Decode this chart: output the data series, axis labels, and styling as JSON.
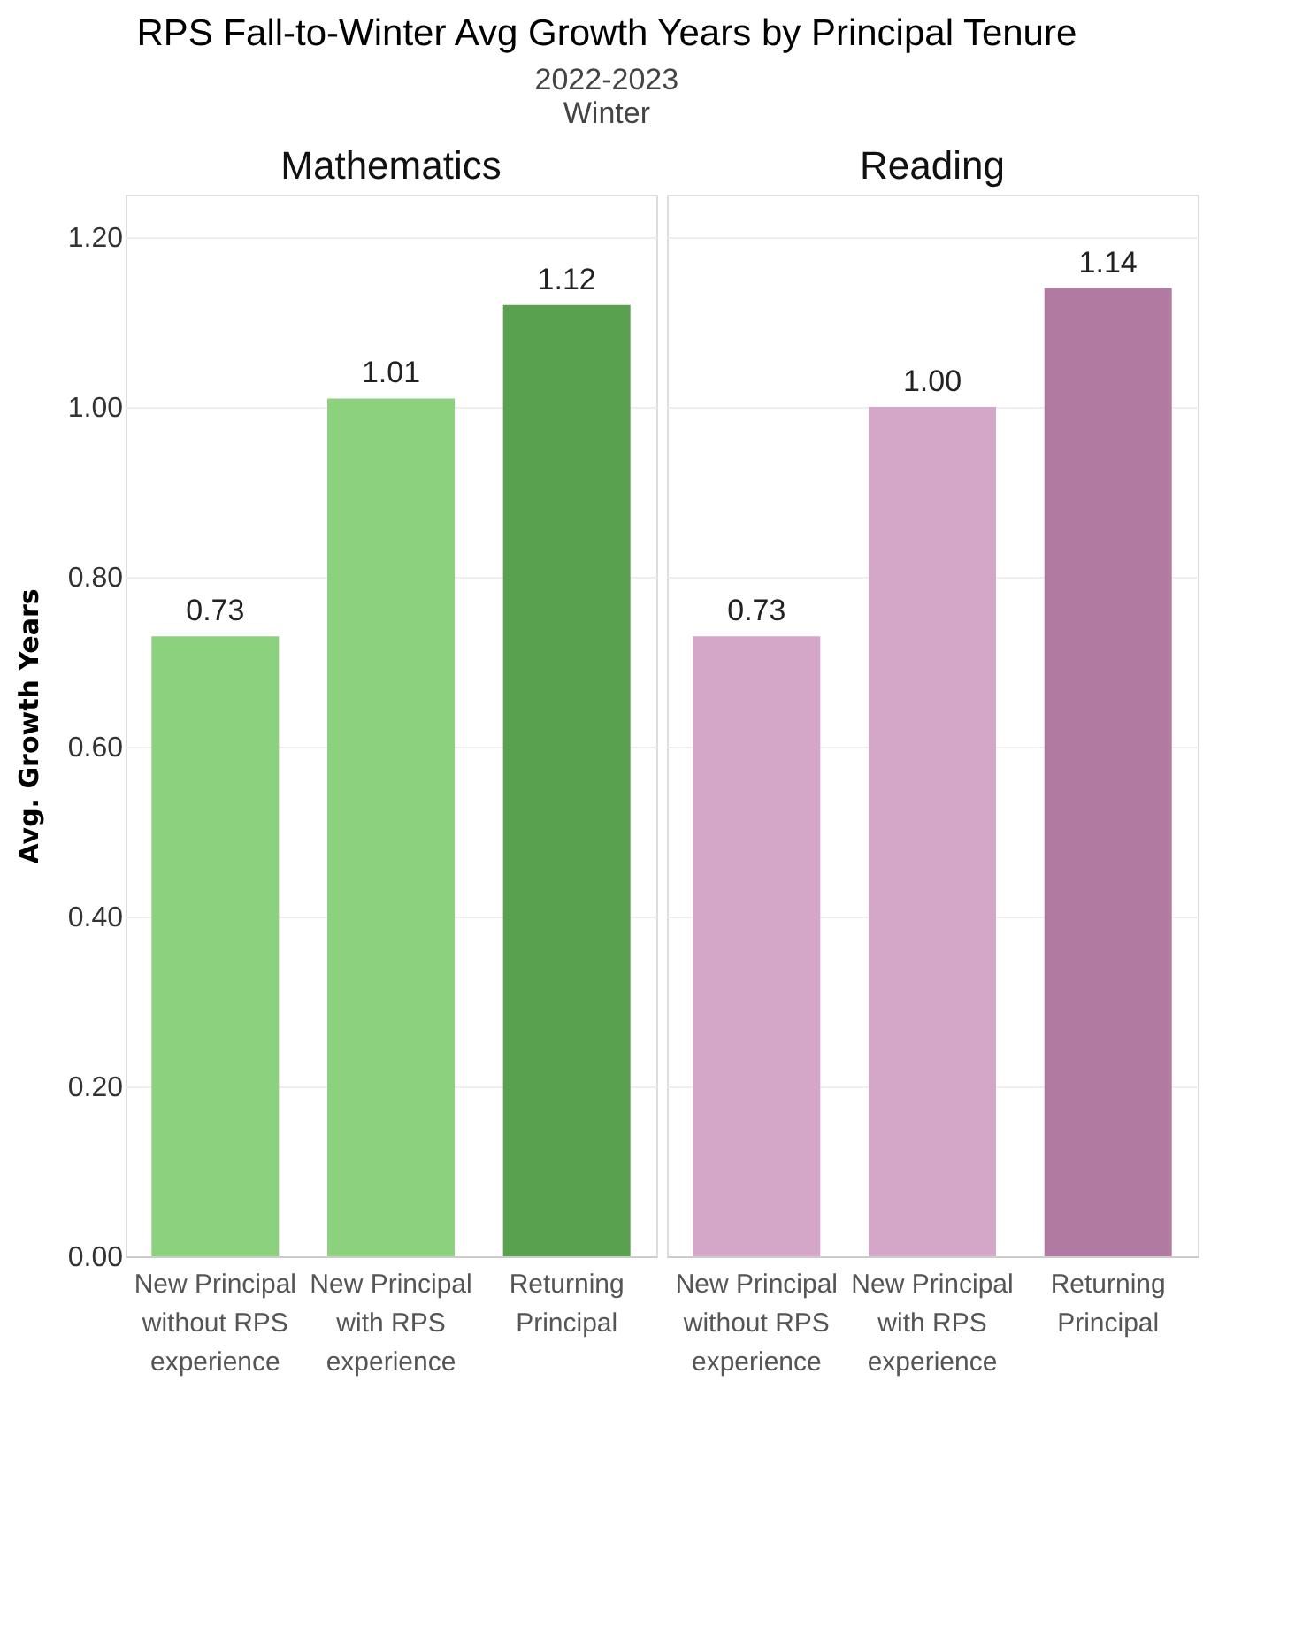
{
  "chart_data": [
    {
      "type": "bar",
      "title": "RPS Fall-to-Winter Avg Growth Years by Principal Tenure",
      "subtitle": "2022-2023",
      "annotations": [
        "Winter"
      ],
      "ylabel": "Avg. Growth Years",
      "categories": [
        "New Principal without RPS experience",
        "New Principal with RPS experience",
        "Returning Principal"
      ],
      "series": [
        {
          "name": "Mathematics",
          "colors": [
            "#8cd17d",
            "#8cd17d",
            "#59a14f"
          ],
          "values": [
            0.73,
            1.01,
            1.12
          ],
          "value_labels": [
            "0.73",
            "1.01",
            "1.12"
          ]
        }
      ],
      "ylim": [
        0,
        1.25
      ],
      "yticks": [
        {
          "value": 0,
          "label": "0.00"
        },
        {
          "value": 0.2,
          "label": "0.20"
        },
        {
          "value": 0.4,
          "label": "0.40"
        },
        {
          "value": 0.6,
          "label": "0.60"
        },
        {
          "value": 0.8,
          "label": "0.80"
        },
        {
          "value": 1.0,
          "label": "1.00"
        },
        {
          "value": 1.2,
          "label": "1.20"
        }
      ],
      "grid": "y"
    },
    {
      "type": "bar",
      "categories": [
        "New Principal without RPS experience",
        "New Principal with RPS experience",
        "Returning Principal"
      ],
      "series": [
        {
          "name": "Reading",
          "colors": [
            "#d4a6c8",
            "#d4a6c8",
            "#b07aa1"
          ],
          "values": [
            0.73,
            1.0,
            1.14
          ],
          "value_labels": [
            "0.73",
            "1.00",
            "1.14"
          ]
        }
      ],
      "ylim": [
        0,
        1.25
      ],
      "yticks": [
        0,
        0.2,
        0.4,
        0.6,
        0.8,
        1.0,
        1.2
      ],
      "grid": "y",
      "tick_labels": "x"
    }
  ]
}
